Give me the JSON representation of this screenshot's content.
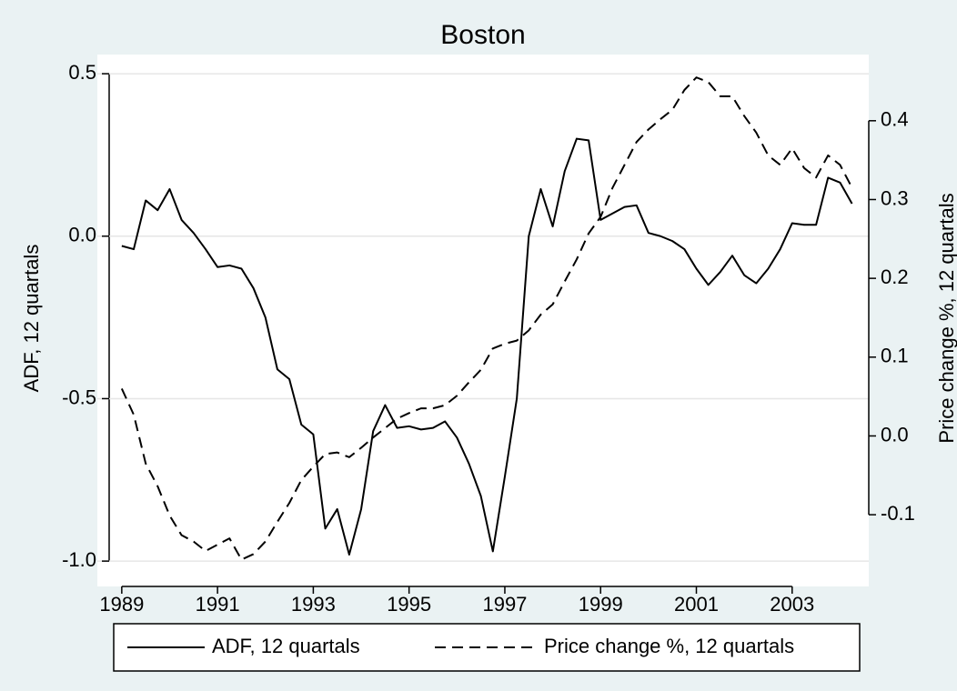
{
  "chart_data": {
    "type": "line",
    "title": "Boston",
    "ylabel": "ADF, 12 quartals",
    "y2label": "Price change %, 12 quartals",
    "x": [
      1989,
      1989.25,
      1989.5,
      1989.75,
      1990,
      1990.25,
      1990.5,
      1990.75,
      1991,
      1991.25,
      1991.5,
      1991.75,
      1992,
      1992.25,
      1992.5,
      1992.75,
      1993,
      1993.25,
      1993.5,
      1993.75,
      1994,
      1994.25,
      1994.5,
      1994.75,
      1995,
      1995.25,
      1995.5,
      1995.75,
      1996,
      1996.25,
      1996.5,
      1996.75,
      1997,
      1997.25,
      1997.5,
      1997.75,
      1998,
      1998.25,
      1998.5,
      1998.75,
      1999,
      1999.25,
      1999.5,
      1999.75,
      2000,
      2000.25,
      2000.5,
      2000.75,
      2001,
      2001.25,
      2001.5,
      2001.75,
      2002,
      2002.25,
      2002.5,
      2002.75,
      2003,
      2003.25,
      2003.5,
      2003.75,
      2004,
      2004.25
    ],
    "series": [
      {
        "name": "ADF, 12 quartals",
        "color": "#000000",
        "line_style": "solid",
        "axis": "y",
        "values": [
          -0.03,
          -0.04,
          0.11,
          0.08,
          0.145,
          0.05,
          0.01,
          -0.04,
          -0.095,
          -0.09,
          -0.1,
          -0.16,
          -0.25,
          -0.41,
          -0.44,
          -0.58,
          -0.61,
          -0.9,
          -0.84,
          -0.98,
          -0.84,
          -0.6,
          -0.52,
          -0.59,
          -0.585,
          -0.595,
          -0.59,
          -0.57,
          -0.62,
          -0.7,
          -0.8,
          -0.97,
          -0.74,
          -0.5,
          0.0,
          0.145,
          0.03,
          0.2,
          0.3,
          0.295,
          0.05,
          0.07,
          0.09,
          0.095,
          0.01,
          0.0,
          -0.015,
          -0.04,
          -0.1,
          -0.15,
          -0.11,
          -0.06,
          -0.12,
          -0.145,
          -0.1,
          -0.04,
          0.04,
          0.035,
          0.035,
          0.18,
          0.165,
          0.1
        ]
      },
      {
        "name": "Price change %, 12 quartals",
        "color": "#000000",
        "line_style": "dashed",
        "axis": "y2",
        "values": [
          0.06,
          0.027,
          -0.035,
          -0.064,
          -0.101,
          -0.126,
          -0.134,
          -0.146,
          -0.138,
          -0.13,
          -0.157,
          -0.15,
          -0.134,
          -0.109,
          -0.085,
          -0.056,
          -0.039,
          -0.023,
          -0.021,
          -0.027,
          -0.015,
          -0.002,
          0.01,
          0.022,
          0.029,
          0.035,
          0.035,
          0.039,
          0.051,
          0.068,
          0.084,
          0.111,
          0.117,
          0.121,
          0.134,
          0.154,
          0.167,
          0.196,
          0.224,
          0.257,
          0.278,
          0.315,
          0.344,
          0.373,
          0.389,
          0.402,
          0.414,
          0.439,
          0.455,
          0.449,
          0.431,
          0.431,
          0.406,
          0.385,
          0.356,
          0.344,
          0.365,
          0.34,
          0.328,
          0.356,
          0.344,
          0.315
        ]
      }
    ],
    "xlim": [
      1988.49,
      2004.6
    ],
    "xticks": [
      1989,
      1991,
      1993,
      1995,
      1997,
      1999,
      2001,
      2003
    ],
    "ylim": [
      -1.078,
      0.559
    ],
    "yticks": [
      0.5,
      {
        "value": 0,
        "label": "0.0"
      },
      -0.5,
      {
        "value": -1,
        "label": "-1.0"
      }
    ],
    "y2lim": [
      -0.191,
      0.484
    ],
    "y2ticks": [
      0.4,
      0.3,
      0.2,
      0.1,
      {
        "value": 0,
        "label": "0.0"
      },
      -0.1
    ],
    "grid": true,
    "legend": "bottom"
  }
}
